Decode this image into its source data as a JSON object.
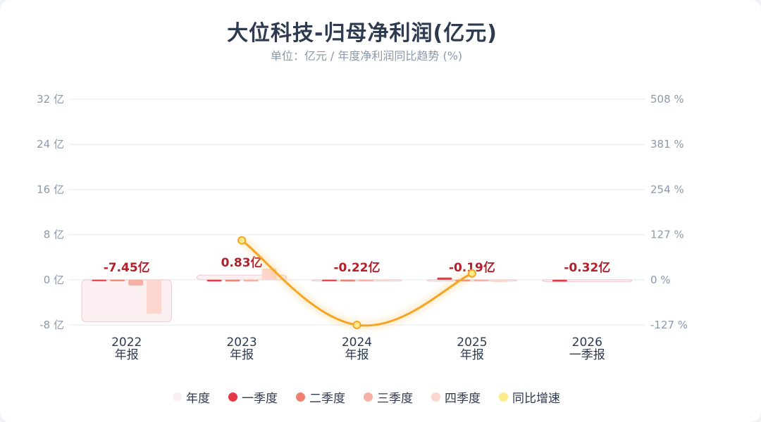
{
  "title": "大位科技-归母净利润(亿元)",
  "subtitle": "单位：亿元 / 年度净利润同比趋势 (%)",
  "colors": {
    "annual": "#fbeff1",
    "q1": "#e63946",
    "q2": "#f08070",
    "q3": "#f6b0a4",
    "q4": "#fcd5cc",
    "yoy": "#f4a523",
    "yoy_dot": "#fcec8c",
    "label": "#b3202a"
  },
  "chart_data": {
    "type": "bar",
    "categories": [
      {
        "year": "2022",
        "period": "年报"
      },
      {
        "year": "2023",
        "period": "年报"
      },
      {
        "year": "2024",
        "period": "年报"
      },
      {
        "year": "2025",
        "period": "年报"
      },
      {
        "year": "2026",
        "period": "一季报"
      }
    ],
    "annual_labels": [
      "-7.45亿",
      "0.83亿",
      "-0.22亿",
      "-0.19亿",
      "-0.32亿"
    ],
    "series": [
      {
        "name": "年度",
        "key": "annual",
        "values": [
          -7.45,
          0.83,
          -0.22,
          -0.19,
          -0.32
        ]
      },
      {
        "name": "一季度",
        "key": "q1",
        "values": [
          -0.15,
          -0.3,
          -0.1,
          0.4,
          -0.32
        ]
      },
      {
        "name": "二季度",
        "key": "q2",
        "values": [
          -0.15,
          -0.3,
          -0.3,
          -0.2,
          null
        ]
      },
      {
        "name": "三季度",
        "key": "q3",
        "values": [
          -1.0,
          -0.3,
          -0.1,
          -0.2,
          null
        ]
      },
      {
        "name": "四季度",
        "key": "q4",
        "values": [
          -6.0,
          2.0,
          -0.1,
          -0.4,
          null
        ]
      }
    ],
    "yoy": {
      "name": "同比增速",
      "values": [
        null,
        111,
        -127,
        18,
        null
      ]
    },
    "left_axis": {
      "min": -8,
      "max": 32,
      "ticks": [
        "-8 亿",
        "0 亿",
        "8 亿",
        "16 亿",
        "24 亿",
        "32 亿"
      ]
    },
    "right_axis": {
      "min": -127,
      "max": 508,
      "ticks": [
        "-127 %",
        "0 %",
        "127 %",
        "254 %",
        "381 %",
        "508 %"
      ]
    },
    "legend": [
      "年度",
      "一季度",
      "二季度",
      "三季度",
      "四季度",
      "同比增速"
    ],
    "legend_position": "bottom",
    "grid": true
  }
}
